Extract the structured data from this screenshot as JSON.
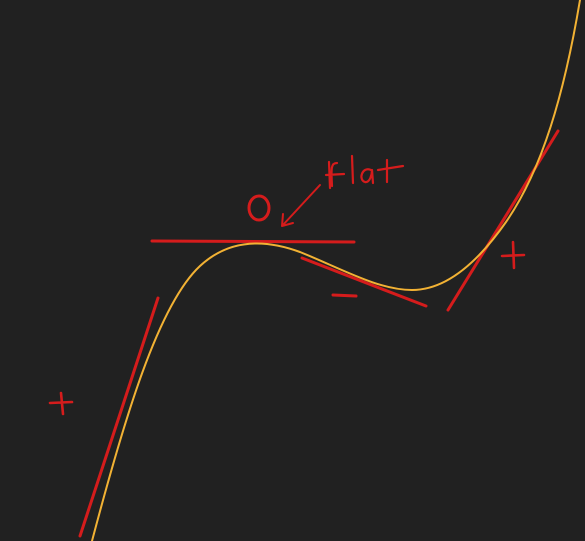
{
  "diagram": {
    "colors": {
      "background": "#212121",
      "curve": "#f2b234",
      "ink": "#d51c1c"
    },
    "labels": {
      "zero_slope": "0",
      "flat_note": "flat",
      "sign_left": "+",
      "sign_middle": "−",
      "sign_right": "+"
    }
  }
}
